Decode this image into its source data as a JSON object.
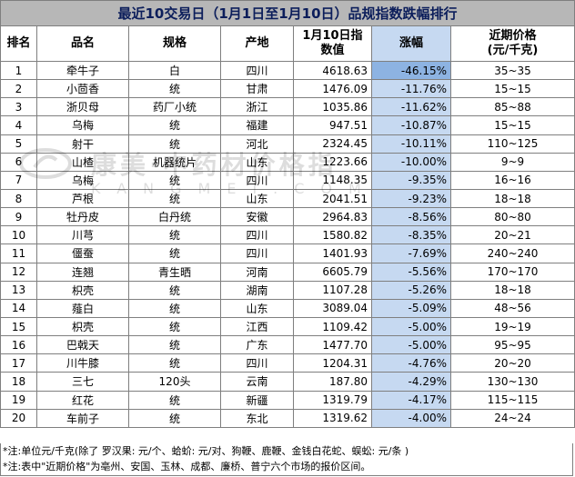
{
  "title": "最近10交易日（1月1日至1月10日）品规指数跌幅排行",
  "headers": {
    "rank": "排名",
    "name": "品名",
    "spec": "规格",
    "origin": "产地",
    "index_line1": "1月10日指",
    "index_line2": "数值",
    "change": "涨幅",
    "price_line1": "近期价格",
    "price_line2": "(元/千克)"
  },
  "rows": [
    {
      "rank": "1",
      "name": "牵牛子",
      "spec": "白",
      "origin": "四川",
      "index": "4618.63",
      "change": "-46.15%",
      "price": "35~35"
    },
    {
      "rank": "2",
      "name": "小茴香",
      "spec": "统",
      "origin": "甘肃",
      "index": "1476.09",
      "change": "-11.76%",
      "price": "15~15"
    },
    {
      "rank": "3",
      "name": "浙贝母",
      "spec": "药厂小统",
      "origin": "浙江",
      "index": "1035.86",
      "change": "-11.62%",
      "price": "85~88"
    },
    {
      "rank": "4",
      "name": "乌梅",
      "spec": "统",
      "origin": "福建",
      "index": "947.51",
      "change": "-10.87%",
      "price": "15~15"
    },
    {
      "rank": "5",
      "name": "射干",
      "spec": "统",
      "origin": "河北",
      "index": "2324.45",
      "change": "-10.11%",
      "price": "110~125"
    },
    {
      "rank": "6",
      "name": "山楂",
      "spec": "机器统片",
      "origin": "山东",
      "index": "1223.66",
      "change": "-10.00%",
      "price": "9~9"
    },
    {
      "rank": "7",
      "name": "乌梅",
      "spec": "统",
      "origin": "四川",
      "index": "1148.35",
      "change": "-9.35%",
      "price": "16~16"
    },
    {
      "rank": "8",
      "name": "芦根",
      "spec": "统",
      "origin": "山东",
      "index": "2041.51",
      "change": "-9.23%",
      "price": "18~18"
    },
    {
      "rank": "9",
      "name": "牡丹皮",
      "spec": "白丹统",
      "origin": "安徽",
      "index": "2964.83",
      "change": "-8.56%",
      "price": "80~80"
    },
    {
      "rank": "10",
      "name": "川芎",
      "spec": "统",
      "origin": "四川",
      "index": "1580.82",
      "change": "-8.35%",
      "price": "20~21"
    },
    {
      "rank": "11",
      "name": "僵蚕",
      "spec": "统",
      "origin": "四川",
      "index": "1401.93",
      "change": "-7.69%",
      "price": "240~240"
    },
    {
      "rank": "12",
      "name": "连翘",
      "spec": "青生晒",
      "origin": "河南",
      "index": "6605.79",
      "change": "-5.56%",
      "price": "170~170"
    },
    {
      "rank": "13",
      "name": "枳壳",
      "spec": "统",
      "origin": "湖南",
      "index": "1107.28",
      "change": "-5.26%",
      "price": "18~18"
    },
    {
      "rank": "14",
      "name": "薤白",
      "spec": "统",
      "origin": "山东",
      "index": "3089.04",
      "change": "-5.09%",
      "price": "48~56"
    },
    {
      "rank": "15",
      "name": "枳壳",
      "spec": "统",
      "origin": "江西",
      "index": "1109.42",
      "change": "-5.00%",
      "price": "19~19"
    },
    {
      "rank": "16",
      "name": "巴戟天",
      "spec": "统",
      "origin": "广东",
      "index": "1477.70",
      "change": "-5.00%",
      "price": "95~95"
    },
    {
      "rank": "17",
      "name": "川牛膝",
      "spec": "统",
      "origin": "四川",
      "index": "1204.31",
      "change": "-4.76%",
      "price": "20~20"
    },
    {
      "rank": "18",
      "name": "三七",
      "spec": "120头",
      "origin": "云南",
      "index": "187.80",
      "change": "-4.29%",
      "price": "130~130"
    },
    {
      "rank": "19",
      "name": "红花",
      "spec": "统",
      "origin": "新疆",
      "index": "1319.79",
      "change": "-4.17%",
      "price": "115~115"
    },
    {
      "rank": "20",
      "name": "车前子",
      "spec": "统",
      "origin": "东北",
      "index": "1319.62",
      "change": "-4.00%",
      "price": "24~24"
    }
  ],
  "notes": [
    "*注:单位元/千克(除了 罗汉果: 元/个、蛤蚧: 元/对、狗鞭、鹿鞭、金钱白花蛇、蜈蚣: 元/条 )",
    "*注:表中\"近期价格\"为亳州、安国、玉林、成都、廉桥、普宁六个市场的报价区间。"
  ],
  "watermark": {
    "line1": "康美·中药材价格指",
    "line2": "KANGMEI.COM"
  },
  "colors": {
    "title_bg": "#b7b7b7",
    "title_text": "#0c1e5b",
    "change_bg": "#c6d9f1",
    "change_top_bg": "#8db3e2"
  }
}
